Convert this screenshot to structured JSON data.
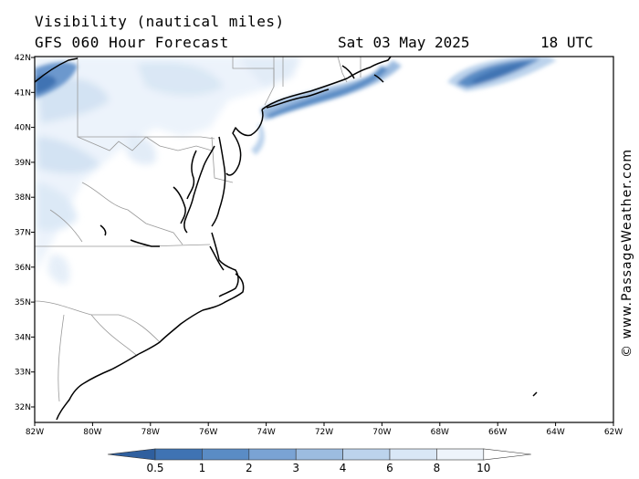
{
  "header": {
    "title_line1": "Visibility (nautical miles)",
    "title_line2": "GFS 060 Hour Forecast",
    "date": "Sat 03 May 2025",
    "time": "18 UTC"
  },
  "credit": "© www.PassageWeather.com",
  "map": {
    "lat_labels": [
      "42N",
      "41N",
      "40N",
      "39N",
      "38N",
      "37N",
      "36N",
      "35N",
      "34N",
      "33N",
      "32N"
    ],
    "lon_labels": [
      "82W",
      "80W",
      "78W",
      "76W",
      "74W",
      "72W",
      "70W",
      "68W",
      "66W",
      "64W",
      "62W"
    ]
  },
  "legend": {
    "labels": [
      "0.5",
      "1",
      "2",
      "3",
      "4",
      "6",
      "8",
      "10"
    ],
    "colors": [
      "#3f73b3",
      "#5a8cc5",
      "#7aa3d4",
      "#9cbce0",
      "#bcd3ec",
      "#d9e7f6",
      "#eef4fb"
    ]
  }
}
